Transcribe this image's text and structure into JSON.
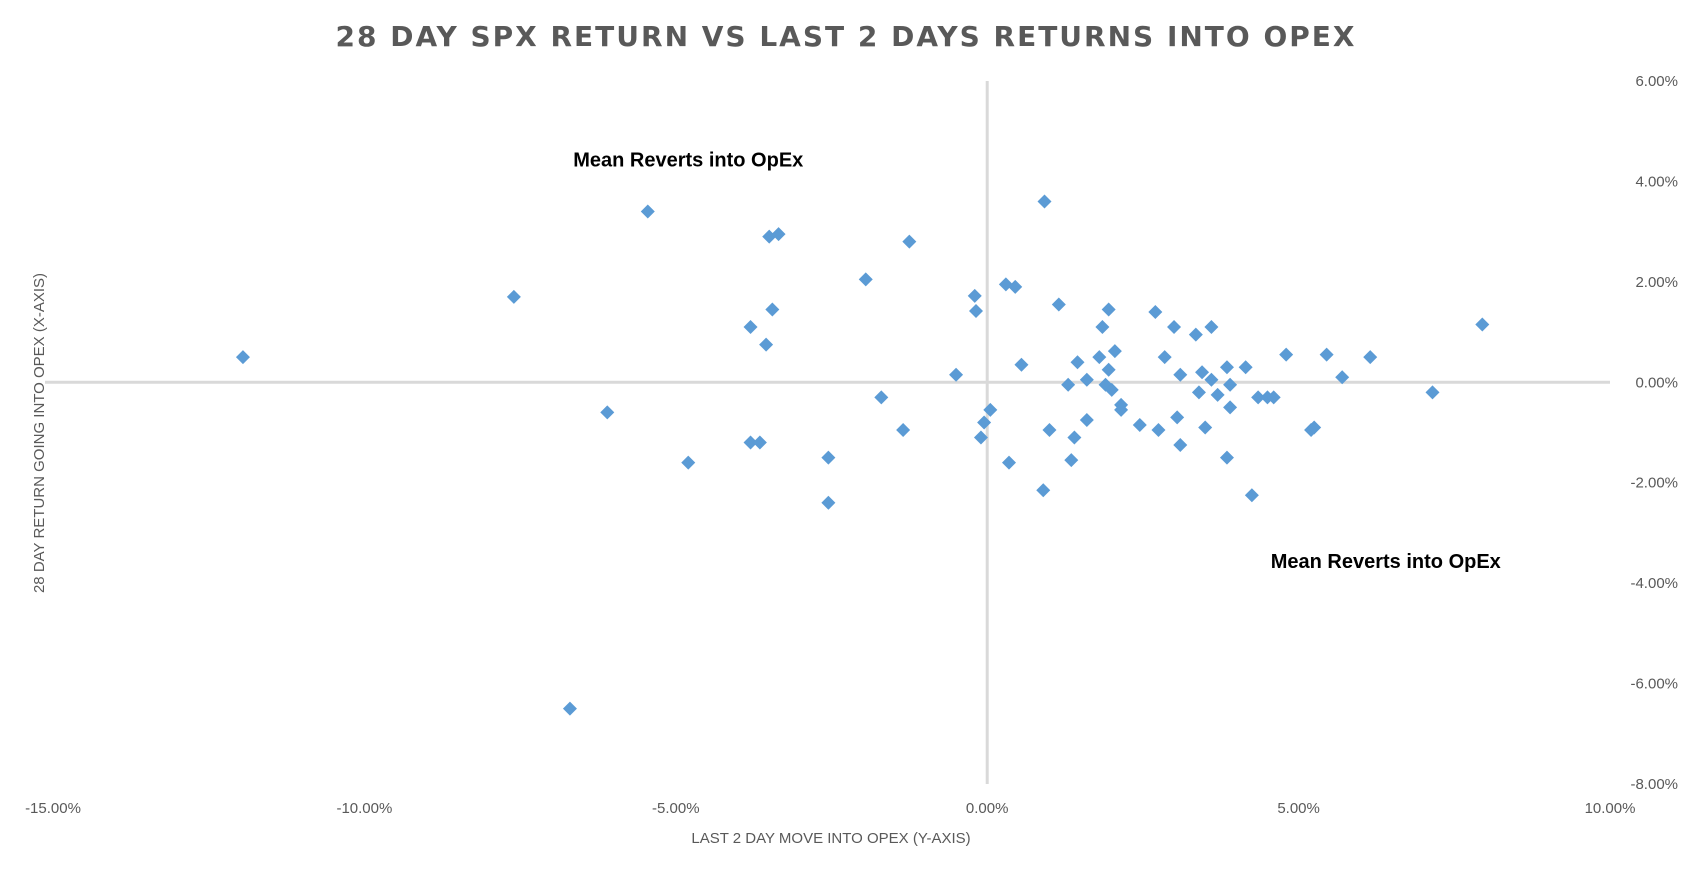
{
  "chart_data": {
    "type": "scatter",
    "title": "28 DAY SPX RETURN VS LAST 2 DAYS RETURNS INTO OPEX",
    "xlabel": "LAST 2 DAY MOVE INTO OPEX (Y-AXIS)",
    "ylabel": "28 DAY RETURN GOING INTO OPEX (X-AXIS)",
    "xlim": [
      -15,
      10
    ],
    "ylim": [
      -8,
      6
    ],
    "x_ticks": [
      -15,
      -10,
      -5,
      0,
      5,
      10
    ],
    "x_tick_labels": [
      "-15.00%",
      "-10.00%",
      "-5.00%",
      "0.00%",
      "5.00%",
      "10.00%"
    ],
    "y_ticks": [
      6,
      4,
      2,
      0,
      -2,
      -4,
      -6,
      -8
    ],
    "y_tick_labels": [
      "6.00%",
      "4.00%",
      "2.00%",
      "0.00%",
      "-2.00%",
      "-4.00%",
      "-6.00%",
      "-8.00%"
    ],
    "y_axis_position": "right",
    "grid": false,
    "marker_color": "#5b9bd5",
    "axis_line_color": "#d9d9d9",
    "annotations": [
      {
        "text": "Mean Reverts into OpEx",
        "x": -4.8,
        "y": 4.3
      },
      {
        "text": "Mean Reverts into OpEx",
        "x": 6.4,
        "y": -3.7
      }
    ],
    "series": [
      {
        "name": "Points",
        "points": [
          [
            -11.95,
            0.5
          ],
          [
            -7.6,
            1.7
          ],
          [
            -6.7,
            -6.5
          ],
          [
            -6.1,
            -0.6
          ],
          [
            -5.45,
            3.4
          ],
          [
            -4.8,
            -1.6
          ],
          [
            -3.8,
            1.1
          ],
          [
            -3.8,
            -1.2
          ],
          [
            -3.65,
            -1.2
          ],
          [
            -3.55,
            0.75
          ],
          [
            -3.5,
            2.9
          ],
          [
            -3.45,
            1.45
          ],
          [
            -3.35,
            2.95
          ],
          [
            -2.55,
            -1.5
          ],
          [
            -2.55,
            -2.4
          ],
          [
            -1.95,
            2.05
          ],
          [
            -1.7,
            -0.3
          ],
          [
            -1.35,
            -0.95
          ],
          [
            -1.25,
            2.8
          ],
          [
            -0.5,
            0.15
          ],
          [
            -0.2,
            1.72
          ],
          [
            -0.18,
            1.42
          ],
          [
            -0.1,
            -1.1
          ],
          [
            -0.05,
            -0.8
          ],
          [
            0.05,
            -0.55
          ],
          [
            0.3,
            1.95
          ],
          [
            0.35,
            -1.6
          ],
          [
            0.45,
            1.9
          ],
          [
            0.55,
            0.35
          ],
          [
            0.9,
            -2.15
          ],
          [
            0.92,
            3.6
          ],
          [
            1.0,
            -0.95
          ],
          [
            1.15,
            1.55
          ],
          [
            1.3,
            -0.05
          ],
          [
            1.35,
            -1.55
          ],
          [
            1.4,
            -1.1
          ],
          [
            1.45,
            0.4
          ],
          [
            1.6,
            0.05
          ],
          [
            1.6,
            -0.75
          ],
          [
            1.8,
            0.5
          ],
          [
            1.85,
            1.1
          ],
          [
            1.9,
            -0.05
          ],
          [
            1.95,
            1.45
          ],
          [
            1.95,
            0.25
          ],
          [
            2.0,
            -0.15
          ],
          [
            2.05,
            0.62
          ],
          [
            2.15,
            -0.45
          ],
          [
            2.15,
            -0.55
          ],
          [
            2.45,
            -0.85
          ],
          [
            2.7,
            1.4
          ],
          [
            2.75,
            -0.95
          ],
          [
            2.85,
            0.5
          ],
          [
            3.0,
            1.1
          ],
          [
            3.05,
            -0.7
          ],
          [
            3.1,
            0.15
          ],
          [
            3.1,
            -1.25
          ],
          [
            3.35,
            0.95
          ],
          [
            3.4,
            -0.2
          ],
          [
            3.45,
            0.2
          ],
          [
            3.5,
            -0.9
          ],
          [
            3.6,
            1.1
          ],
          [
            3.6,
            0.05
          ],
          [
            3.7,
            -0.25
          ],
          [
            3.85,
            0.3
          ],
          [
            3.85,
            -1.5
          ],
          [
            3.9,
            -0.5
          ],
          [
            3.9,
            -0.05
          ],
          [
            4.15,
            0.3
          ],
          [
            4.25,
            -2.25
          ],
          [
            4.35,
            -0.3
          ],
          [
            4.5,
            -0.3
          ],
          [
            4.6,
            -0.3
          ],
          [
            4.8,
            0.55
          ],
          [
            5.2,
            -0.95
          ],
          [
            5.25,
            -0.9
          ],
          [
            5.45,
            0.55
          ],
          [
            5.7,
            0.1
          ],
          [
            6.15,
            0.5
          ],
          [
            7.15,
            -0.2
          ],
          [
            7.95,
            1.15
          ]
        ]
      }
    ]
  }
}
